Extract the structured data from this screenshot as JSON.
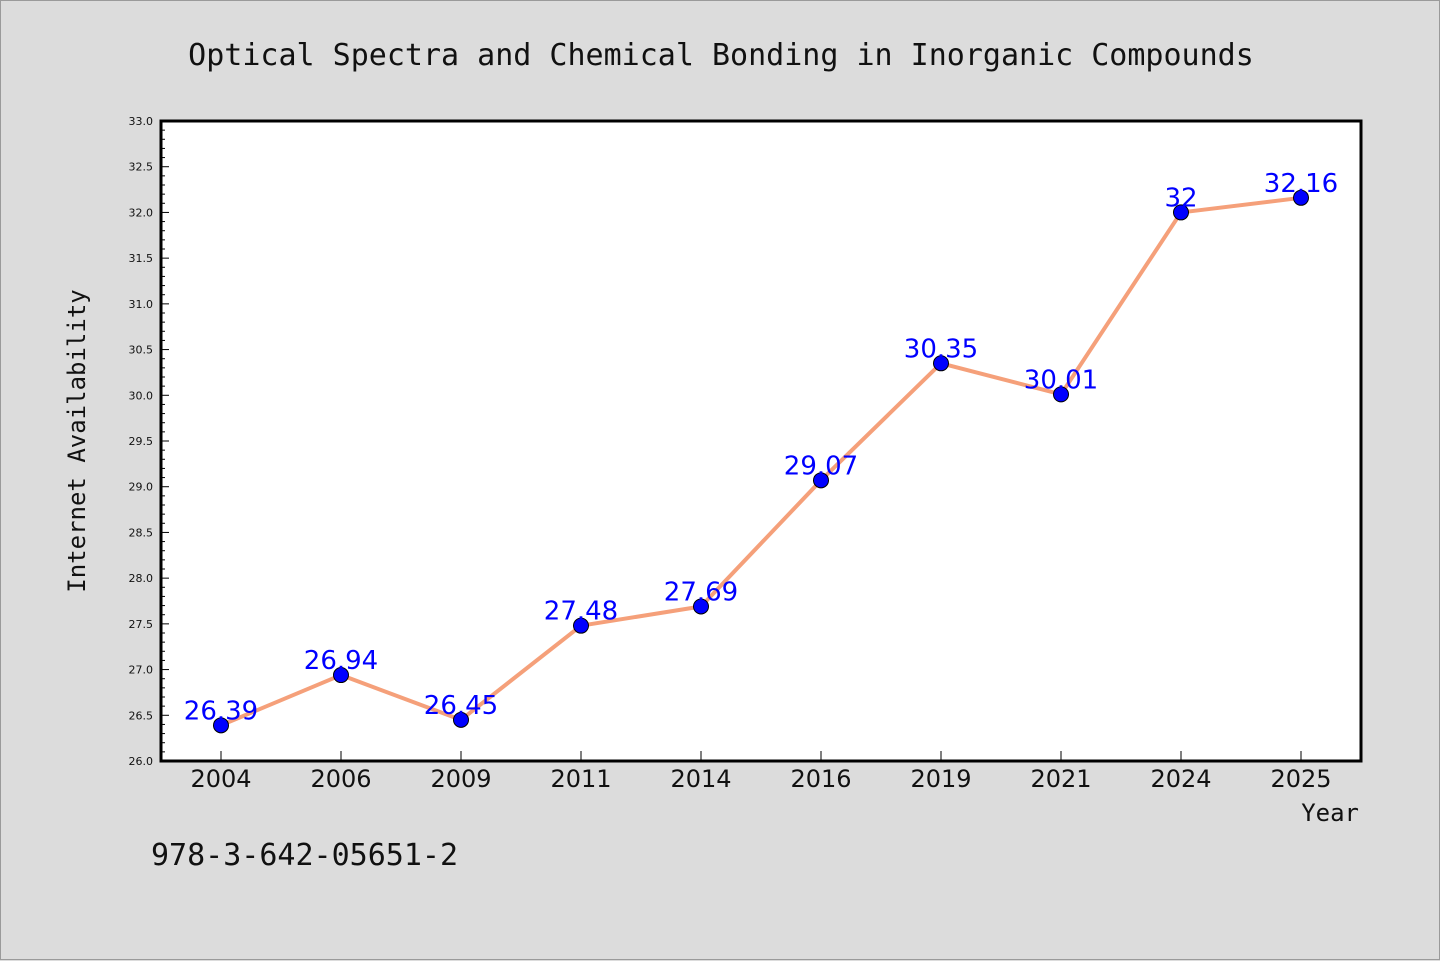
{
  "chart_data": {
    "type": "line",
    "title": "Optical Spectra and Chemical Bonding in Inorganic Compounds",
    "xlabel": "Year",
    "ylabel": "Internet Availability",
    "categories": [
      "2004",
      "2006",
      "2009",
      "2011",
      "2014",
      "2016",
      "2019",
      "2021",
      "2024",
      "2025"
    ],
    "series": [
      {
        "values": [
          26.39,
          26.94,
          26.45,
          27.48,
          27.69,
          29.07,
          30.35,
          30.01,
          32,
          32.16
        ],
        "labels": [
          "26.39",
          "26.94",
          "26.45",
          "27.48",
          "27.69",
          "29.07",
          "30.35",
          "30.01",
          "32",
          "32.16"
        ]
      }
    ],
    "ylim": [
      26.0,
      33.0
    ],
    "yticks": [
      "26.0",
      "26.5",
      "27.0",
      "27.5",
      "28.0",
      "28.5",
      "29.0",
      "29.5",
      "30.0",
      "30.5",
      "31.0",
      "31.5",
      "32.0",
      "32.5",
      "33.0"
    ],
    "grid": false,
    "line_color": "#f5a07a",
    "marker_color": "#0000ff",
    "label_color": "#0000ff",
    "background": "#dcdcdc",
    "plot_background": "#ffffff"
  },
  "footer": {
    "isbn": "978-3-642-05651-2"
  }
}
